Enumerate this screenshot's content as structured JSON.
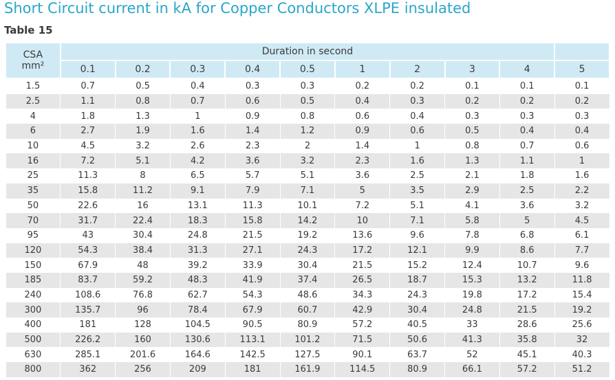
{
  "title": "Short Circuit current in kA for Copper Conductors XLPE insulated",
  "table_label": "Table 15",
  "table": {
    "header": {
      "csa": [
        "CSA",
        "mm²"
      ],
      "duration": "Duration in second",
      "durations": [
        0.1,
        0.2,
        0.3,
        0.4,
        0.5,
        1,
        2,
        3,
        4,
        5
      ]
    },
    "rows": [
      [
        1.5,
        0.7,
        0.5,
        0.4,
        0.3,
        0.3,
        0.2,
        0.2,
        0.1,
        0.1,
        0.1
      ],
      [
        2.5,
        1.1,
        0.8,
        0.7,
        0.6,
        0.5,
        0.4,
        0.3,
        0.2,
        0.2,
        0.2
      ],
      [
        4,
        1.8,
        1.3,
        1,
        0.9,
        0.8,
        0.6,
        0.4,
        0.3,
        0.3,
        0.3
      ],
      [
        6,
        2.7,
        1.9,
        1.6,
        1.4,
        1.2,
        0.9,
        0.6,
        0.5,
        0.4,
        0.4
      ],
      [
        10,
        4.5,
        3.2,
        2.6,
        2.3,
        2,
        1.4,
        1,
        0.8,
        0.7,
        0.6
      ],
      [
        16,
        7.2,
        5.1,
        4.2,
        3.6,
        3.2,
        2.3,
        1.6,
        1.3,
        1.1,
        1
      ],
      [
        25,
        11.3,
        8,
        6.5,
        5.7,
        5.1,
        3.6,
        2.5,
        2.1,
        1.8,
        1.6
      ],
      [
        35,
        15.8,
        11.2,
        9.1,
        7.9,
        7.1,
        5,
        3.5,
        2.9,
        2.5,
        2.2
      ],
      [
        50,
        22.6,
        16,
        13.1,
        11.3,
        10.1,
        7.2,
        5.1,
        4.1,
        3.6,
        3.2
      ],
      [
        70,
        31.7,
        22.4,
        18.3,
        15.8,
        14.2,
        10,
        7.1,
        5.8,
        5,
        4.5
      ],
      [
        95,
        43,
        30.4,
        24.8,
        21.5,
        19.2,
        13.6,
        9.6,
        7.8,
        6.8,
        6.1
      ],
      [
        120,
        54.3,
        38.4,
        31.3,
        27.1,
        24.3,
        17.2,
        12.1,
        9.9,
        8.6,
        7.7
      ],
      [
        150,
        67.9,
        48,
        39.2,
        33.9,
        30.4,
        21.5,
        15.2,
        12.4,
        10.7,
        9.6
      ],
      [
        185,
        83.7,
        59.2,
        48.3,
        41.9,
        37.4,
        26.5,
        18.7,
        15.3,
        13.2,
        11.8
      ],
      [
        240,
        108.6,
        76.8,
        62.7,
        54.3,
        48.6,
        34.3,
        24.3,
        19.8,
        17.2,
        15.4
      ],
      [
        300,
        135.7,
        96,
        78.4,
        67.9,
        60.7,
        42.9,
        30.4,
        24.8,
        21.5,
        19.2
      ],
      [
        400,
        181,
        128,
        104.5,
        90.5,
        80.9,
        57.2,
        40.5,
        33,
        28.6,
        25.6
      ],
      [
        500,
        226.2,
        160,
        130.6,
        113.1,
        101.2,
        71.5,
        50.6,
        41.3,
        35.8,
        32
      ],
      [
        630,
        285.1,
        201.6,
        164.6,
        142.5,
        127.5,
        90.1,
        63.7,
        52,
        45.1,
        40.3
      ],
      [
        800,
        362,
        256,
        209,
        181,
        161.9,
        114.5,
        80.9,
        66.1,
        57.2,
        51.2
      ]
    ]
  }
}
